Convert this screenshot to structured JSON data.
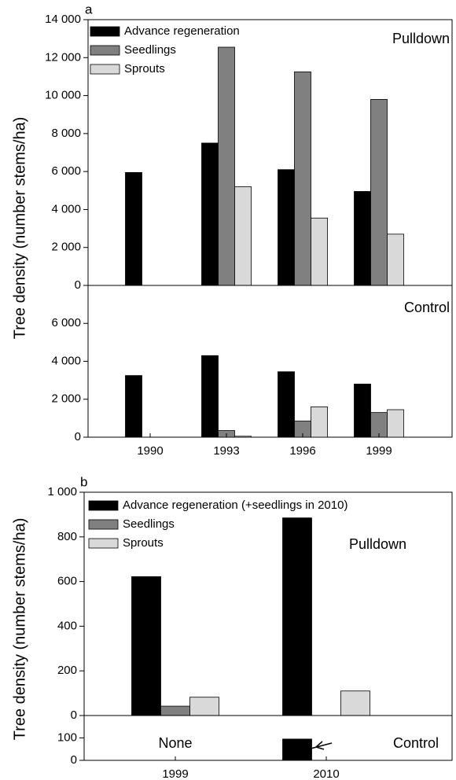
{
  "chart_data": [
    {
      "type": "bar",
      "panel_label": "a",
      "y_label": "Tree density (number stems/ha)",
      "annotation": "Pulldown",
      "legend": true,
      "series": [
        {
          "name": "Advance regeneration",
          "color": "#000000",
          "values": [
            5950,
            7500,
            6100,
            4950
          ]
        },
        {
          "name": "Seedlings",
          "color": "#808080",
          "values": [
            0,
            12550,
            11250,
            9800
          ]
        },
        {
          "name": "Sprouts",
          "color": "#d9d9d9",
          "values": [
            0,
            5200,
            3550,
            2700
          ]
        }
      ],
      "ylim": [
        0,
        14000
      ],
      "yticks": [
        0,
        {
          "value": 2000,
          "label": "2 000"
        },
        {
          "value": 4000,
          "label": "4 000"
        },
        {
          "value": 6000,
          "label": "6 000"
        },
        {
          "value": 8000,
          "label": "8 000"
        },
        {
          "value": 10000,
          "label": "10 000"
        },
        {
          "value": 12000,
          "label": "12 000"
        },
        {
          "value": 14000,
          "label": "14 000"
        }
      ]
    },
    {
      "type": "bar",
      "annotation": "Control",
      "categories": [
        "1990",
        "1993",
        "1996",
        "1999"
      ],
      "series": [
        {
          "color": "#000000",
          "values": [
            3250,
            4300,
            3450,
            2800
          ]
        },
        {
          "color": "#808080",
          "values": [
            0,
            350,
            850,
            1300
          ]
        },
        {
          "color": "#d9d9d9",
          "values": [
            0,
            50,
            1600,
            1450
          ]
        }
      ],
      "ylim": [
        0,
        8000
      ],
      "yticks": [
        0,
        {
          "value": 2000,
          "label": "2 000"
        },
        {
          "value": 4000,
          "label": "4 000"
        },
        {
          "value": 6000,
          "label": "6 000"
        }
      ]
    },
    {
      "type": "bar",
      "panel_label": "b",
      "y_label": "Tree density (number stems/ha)",
      "annotation": "Pulldown",
      "legend": true,
      "series": [
        {
          "name": "Advance regeneration (+seedlings in 2010)",
          "color": "#000000",
          "values": [
            622,
            885
          ]
        },
        {
          "name": "Seedlings",
          "color": "#808080",
          "values": [
            42,
            0
          ]
        },
        {
          "name": "Sprouts",
          "color": "#d9d9d9",
          "values": [
            82,
            110
          ]
        }
      ],
      "ylim": [
        0,
        1000
      ],
      "yticks": [
        0,
        200,
        400,
        600,
        800,
        {
          "value": 1000,
          "label": "1 000"
        }
      ]
    },
    {
      "type": "bar",
      "annotation": "Control",
      "annotation2": "None",
      "categories": [
        "1999",
        "2010"
      ],
      "series": [
        {
          "color": "#000000",
          "values": [
            0,
            95
          ]
        },
        {
          "color": "#808080",
          "values": [
            0,
            0
          ]
        },
        {
          "color": "#d9d9d9",
          "values": [
            0,
            0
          ]
        }
      ],
      "ylim": [
        0,
        200
      ],
      "yticks": [
        0,
        100
      ]
    }
  ]
}
